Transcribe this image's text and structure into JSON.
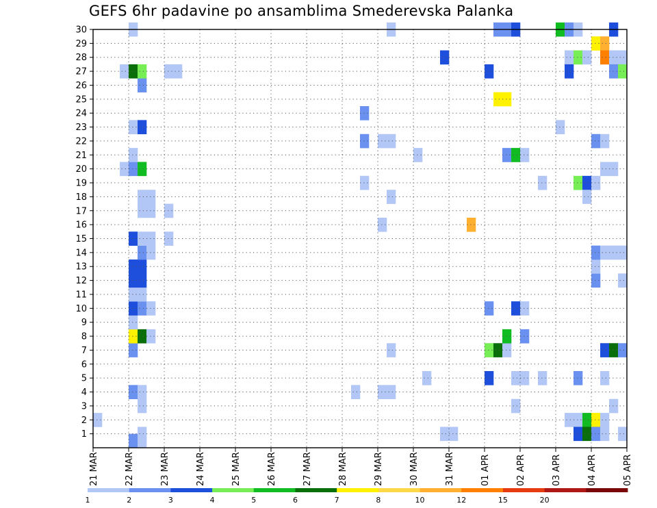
{
  "chart_data": {
    "type": "heatmap",
    "title": "GEFS 6hr padavine po ansamblima Smederevska Palanka",
    "xlabel": "",
    "ylabel": "",
    "x_ticks": [
      "21 MAR",
      "22 MAR",
      "23 MAR",
      "24 MAR",
      "25 MAR",
      "26 MAR",
      "27 MAR",
      "28 MAR",
      "29 MAR",
      "30 MAR",
      "31 MAR",
      "01 APR",
      "02 APR",
      "03 APR",
      "04 APR",
      "05 APR"
    ],
    "y_ticks": [
      1,
      2,
      3,
      4,
      5,
      6,
      7,
      8,
      9,
      10,
      11,
      12,
      13,
      14,
      15,
      16,
      17,
      18,
      19,
      20,
      21,
      22,
      23,
      24,
      25,
      26,
      27,
      28,
      29,
      30
    ],
    "x_range_days": [
      0,
      15
    ],
    "y_range": [
      0,
      30
    ],
    "time_step_hours": 6,
    "grid": true,
    "legend_position": "bottom",
    "colorbar": {
      "labels": [
        "1",
        "2",
        "3",
        "4",
        "5",
        "6",
        "7",
        "8",
        "10",
        "12",
        "15",
        "20"
      ],
      "colors": [
        "#b3c7f7",
        "#6a91f0",
        "#1e4fdc",
        "#77ee55",
        "#11bb22",
        "#0a6e0a",
        "#fff200",
        "#ffd84a",
        "#ffb030",
        "#ff7f00",
        "#e63b10",
        "#b01818",
        "#7a0808"
      ]
    },
    "cells": [
      {
        "t": 1.0,
        "m": 0.5,
        "c": 2
      },
      {
        "t": 1.25,
        "m": 0.5,
        "c": 1
      },
      {
        "t": 1.25,
        "m": 1,
        "c": 1
      },
      {
        "t": 0.0,
        "m": 2,
        "c": 1
      },
      {
        "t": 1.25,
        "m": 3,
        "c": 1
      },
      {
        "t": 1.0,
        "m": 4,
        "c": 2
      },
      {
        "t": 1.25,
        "m": 4,
        "c": 1
      },
      {
        "t": 1.0,
        "m": 7,
        "c": 2
      },
      {
        "t": 1.0,
        "m": 8,
        "c": 7
      },
      {
        "t": 1.25,
        "m": 8,
        "c": 6
      },
      {
        "t": 1.5,
        "m": 8,
        "c": 1
      },
      {
        "t": 1.0,
        "m": 9,
        "c": 1
      },
      {
        "t": 1.0,
        "m": 10,
        "c": 3
      },
      {
        "t": 1.25,
        "m": 10,
        "c": 2
      },
      {
        "t": 1.5,
        "m": 10,
        "c": 1
      },
      {
        "t": 1.0,
        "m": 11,
        "c": 1
      },
      {
        "t": 1.25,
        "m": 11,
        "c": 1
      },
      {
        "t": 1.0,
        "m": 12,
        "c": 3
      },
      {
        "t": 1.25,
        "m": 12,
        "c": 3
      },
      {
        "t": 1.0,
        "m": 13,
        "c": 3
      },
      {
        "t": 1.25,
        "m": 13,
        "c": 3
      },
      {
        "t": 1.25,
        "m": 14,
        "c": 2
      },
      {
        "t": 1.5,
        "m": 14,
        "c": 1
      },
      {
        "t": 1.0,
        "m": 15,
        "c": 3
      },
      {
        "t": 1.25,
        "m": 15,
        "c": 1
      },
      {
        "t": 1.5,
        "m": 15,
        "c": 1
      },
      {
        "t": 2.0,
        "m": 15,
        "c": 1
      },
      {
        "t": 1.25,
        "m": 17,
        "c": 1
      },
      {
        "t": 1.5,
        "m": 17,
        "c": 1
      },
      {
        "t": 2.0,
        "m": 17,
        "c": 1
      },
      {
        "t": 1.25,
        "m": 18,
        "c": 1
      },
      {
        "t": 1.5,
        "m": 18,
        "c": 1
      },
      {
        "t": 0.75,
        "m": 20,
        "c": 1
      },
      {
        "t": 1.0,
        "m": 20,
        "c": 2
      },
      {
        "t": 1.25,
        "m": 20,
        "c": 5
      },
      {
        "t": 1.0,
        "m": 21,
        "c": 1
      },
      {
        "t": 1.0,
        "m": 23,
        "c": 1
      },
      {
        "t": 1.25,
        "m": 23,
        "c": 3
      },
      {
        "t": 1.25,
        "m": 26,
        "c": 2
      },
      {
        "t": 0.75,
        "m": 27,
        "c": 1
      },
      {
        "t": 1.0,
        "m": 27,
        "c": 6
      },
      {
        "t": 1.25,
        "m": 27,
        "c": 4
      },
      {
        "t": 2.0,
        "m": 27,
        "c": 1
      },
      {
        "t": 2.25,
        "m": 27,
        "c": 1
      },
      {
        "t": 1.0,
        "m": 30,
        "c": 1
      },
      {
        "t": 7.25,
        "m": 4,
        "c": 1
      },
      {
        "t": 7.5,
        "m": 22,
        "c": 2
      },
      {
        "t": 7.5,
        "m": 24,
        "c": 2
      },
      {
        "t": 7.5,
        "m": 19,
        "c": 1
      },
      {
        "t": 8.0,
        "m": 4,
        "c": 1
      },
      {
        "t": 8.25,
        "m": 4,
        "c": 1
      },
      {
        "t": 8.0,
        "m": 22,
        "c": 1
      },
      {
        "t": 8.25,
        "m": 22,
        "c": 1
      },
      {
        "t": 8.0,
        "m": 16,
        "c": 1
      },
      {
        "t": 8.25,
        "m": 18,
        "c": 1
      },
      {
        "t": 8.25,
        "m": 7,
        "c": 1
      },
      {
        "t": 8.25,
        "m": 30,
        "c": 1
      },
      {
        "t": 9.0,
        "m": 21,
        "c": 1
      },
      {
        "t": 9.25,
        "m": 5,
        "c": 1
      },
      {
        "t": 9.75,
        "m": 28,
        "c": 3
      },
      {
        "t": 9.75,
        "m": 1,
        "c": 1
      },
      {
        "t": 10.0,
        "m": 1,
        "c": 1
      },
      {
        "t": 10.5,
        "m": 16,
        "c": 9
      },
      {
        "t": 11.0,
        "m": 5,
        "c": 3
      },
      {
        "t": 11.0,
        "m": 10,
        "c": 2
      },
      {
        "t": 11.0,
        "m": 27,
        "c": 3
      },
      {
        "t": 11.0,
        "m": 7,
        "c": 4
      },
      {
        "t": 11.25,
        "m": 7,
        "c": 6
      },
      {
        "t": 11.5,
        "m": 7,
        "c": 1
      },
      {
        "t": 11.25,
        "m": 25,
        "c": 7
      },
      {
        "t": 11.5,
        "m": 25,
        "c": 7
      },
      {
        "t": 11.5,
        "m": 8,
        "c": 5
      },
      {
        "t": 11.5,
        "m": 21,
        "c": 2
      },
      {
        "t": 11.75,
        "m": 21,
        "c": 5
      },
      {
        "t": 12.0,
        "m": 21,
        "c": 1
      },
      {
        "t": 11.75,
        "m": 10,
        "c": 3
      },
      {
        "t": 12.0,
        "m": 10,
        "c": 1
      },
      {
        "t": 11.75,
        "m": 5,
        "c": 1
      },
      {
        "t": 12.0,
        "m": 5,
        "c": 1
      },
      {
        "t": 11.75,
        "m": 3,
        "c": 1
      },
      {
        "t": 12.0,
        "m": 8,
        "c": 2
      },
      {
        "t": 11.25,
        "m": 30,
        "c": 2
      },
      {
        "t": 11.5,
        "m": 30,
        "c": 2
      },
      {
        "t": 11.75,
        "m": 30,
        "c": 3
      },
      {
        "t": 12.5,
        "m": 5,
        "c": 1
      },
      {
        "t": 12.5,
        "m": 19,
        "c": 1
      },
      {
        "t": 13.0,
        "m": 23,
        "c": 1
      },
      {
        "t": 13.0,
        "m": 30,
        "c": 5
      },
      {
        "t": 13.25,
        "m": 30,
        "c": 2
      },
      {
        "t": 13.5,
        "m": 30,
        "c": 1
      },
      {
        "t": 13.25,
        "m": 28,
        "c": 1
      },
      {
        "t": 13.5,
        "m": 28,
        "c": 4
      },
      {
        "t": 13.75,
        "m": 28,
        "c": 1
      },
      {
        "t": 13.25,
        "m": 27,
        "c": 3
      },
      {
        "t": 13.25,
        "m": 2,
        "c": 1
      },
      {
        "t": 13.5,
        "m": 2,
        "c": 1
      },
      {
        "t": 13.75,
        "m": 2,
        "c": 5
      },
      {
        "t": 14.0,
        "m": 2,
        "c": 7
      },
      {
        "t": 14.25,
        "m": 2,
        "c": 1
      },
      {
        "t": 13.5,
        "m": 1,
        "c": 3
      },
      {
        "t": 13.75,
        "m": 1,
        "c": 6
      },
      {
        "t": 14.0,
        "m": 1,
        "c": 2
      },
      {
        "t": 14.25,
        "m": 1,
        "c": 1
      },
      {
        "t": 13.5,
        "m": 5,
        "c": 2
      },
      {
        "t": 13.5,
        "m": 19,
        "c": 4
      },
      {
        "t": 13.75,
        "m": 19,
        "c": 3
      },
      {
        "t": 13.75,
        "m": 18,
        "c": 1
      },
      {
        "t": 14.0,
        "m": 12,
        "c": 2
      },
      {
        "t": 14.0,
        "m": 13,
        "c": 1
      },
      {
        "t": 14.0,
        "m": 19,
        "c": 1
      },
      {
        "t": 14.0,
        "m": 14,
        "c": 2
      },
      {
        "t": 14.25,
        "m": 14,
        "c": 1
      },
      {
        "t": 14.5,
        "m": 14,
        "c": 1
      },
      {
        "t": 14.75,
        "m": 14,
        "c": 1
      },
      {
        "t": 14.0,
        "m": 22,
        "c": 2
      },
      {
        "t": 14.25,
        "m": 22,
        "c": 1
      },
      {
        "t": 14.25,
        "m": 20,
        "c": 1
      },
      {
        "t": 14.5,
        "m": 20,
        "c": 1
      },
      {
        "t": 14.0,
        "m": 29,
        "c": 7
      },
      {
        "t": 14.25,
        "m": 29,
        "c": 9
      },
      {
        "t": 14.25,
        "m": 28,
        "c": 10
      },
      {
        "t": 14.5,
        "m": 28,
        "c": 1
      },
      {
        "t": 14.75,
        "m": 28,
        "c": 1
      },
      {
        "t": 14.25,
        "m": 5,
        "c": 1
      },
      {
        "t": 14.25,
        "m": 7,
        "c": 3
      },
      {
        "t": 14.5,
        "m": 7,
        "c": 6
      },
      {
        "t": 14.75,
        "m": 7,
        "c": 2
      },
      {
        "t": 14.5,
        "m": 3,
        "c": 1
      },
      {
        "t": 14.5,
        "m": 27,
        "c": 2
      },
      {
        "t": 14.75,
        "m": 27,
        "c": 4
      },
      {
        "t": 14.5,
        "m": 30,
        "c": 3
      },
      {
        "t": 14.75,
        "m": 1,
        "c": 1
      },
      {
        "t": 14.75,
        "m": 12,
        "c": 1
      }
    ]
  }
}
